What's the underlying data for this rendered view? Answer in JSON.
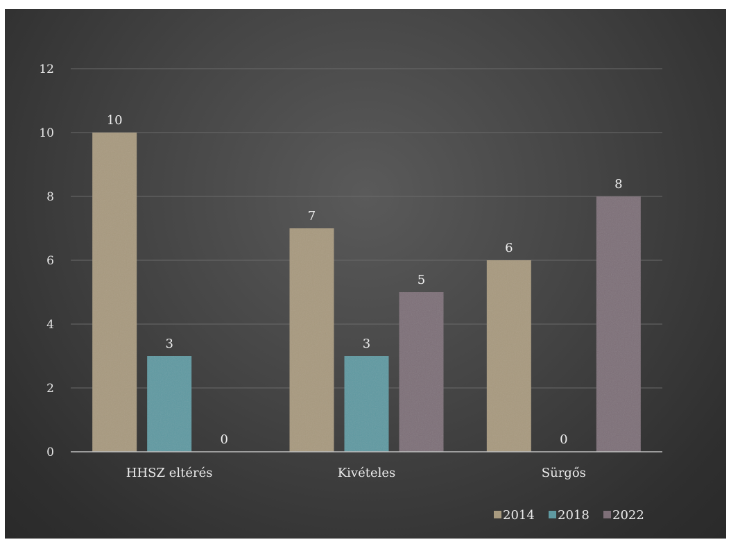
{
  "chart_data": {
    "type": "bar",
    "categories": [
      "HHSZ eltérés",
      "Kivételes",
      "Sürgős"
    ],
    "series": [
      {
        "name": "2014",
        "values": [
          10,
          7,
          6
        ],
        "color": "#a89a7f"
      },
      {
        "name": "2018",
        "values": [
          3,
          3,
          0
        ],
        "color": "#5f9aa2"
      },
      {
        "name": "2022",
        "values": [
          0,
          5,
          8
        ],
        "color": "#7e6f78"
      }
    ],
    "ylim": [
      0,
      12
    ],
    "yticks": [
      0,
      2,
      4,
      6,
      8,
      10,
      12
    ],
    "grid": true,
    "legend": "bottom-right",
    "data_labels": true
  }
}
